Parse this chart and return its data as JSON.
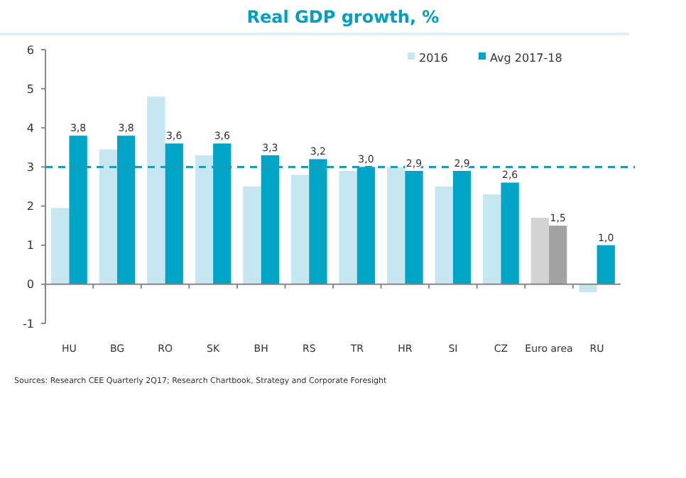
{
  "chart_data": {
    "type": "bar",
    "title": "Real GDP growth, %",
    "categories": [
      "HU",
      "BG",
      "RO",
      "SK",
      "BH",
      "RS",
      "TR",
      "HR",
      "SI",
      "CZ",
      "Euro area",
      "RU"
    ],
    "series": [
      {
        "name": "2016",
        "color": "#c6e7f1",
        "colors": [
          "#c6e7f1",
          "#c6e7f1",
          "#c6e7f1",
          "#c6e7f1",
          "#c6e7f1",
          "#c6e7f1",
          "#c6e7f1",
          "#c6e7f1",
          "#c6e7f1",
          "#c6e7f1",
          "#d3d3d3",
          "#c6e7f1"
        ],
        "values": [
          1.95,
          3.45,
          4.8,
          3.3,
          2.5,
          2.8,
          2.9,
          3.0,
          2.5,
          2.3,
          1.7,
          -0.2
        ]
      },
      {
        "name": "Avg 2017-18",
        "color": "#00a5c6",
        "colors": [
          "#00a5c6",
          "#00a5c6",
          "#00a5c6",
          "#00a5c6",
          "#00a5c6",
          "#00a5c6",
          "#00a5c6",
          "#00a5c6",
          "#00a5c6",
          "#00a5c6",
          "#a3a3a3",
          "#00a5c6"
        ],
        "values": [
          3.8,
          3.8,
          3.6,
          3.6,
          3.3,
          3.2,
          3.0,
          2.9,
          2.9,
          2.6,
          1.5,
          1.0
        ],
        "value_labels": [
          "3,8",
          "3,8",
          "3,6",
          "3,6",
          "3,3",
          "3,2",
          "3,0",
          "2,9",
          "2,9",
          "2,6",
          "1,5",
          "1,0"
        ]
      }
    ],
    "ylim": [
      -1,
      6
    ],
    "yticks": [
      -1,
      0,
      1,
      2,
      3,
      4,
      5,
      6
    ],
    "grid": false,
    "legend": "top right",
    "ref_lines": [
      {
        "axis": "y",
        "value": 3,
        "color": "#1a9bb8",
        "line_style": "dashed"
      }
    ],
    "annotations": [
      "Sources: Research CEE Quarterly 2Q17; Research Chartbook, Strategy and Corporate Foresight"
    ]
  }
}
